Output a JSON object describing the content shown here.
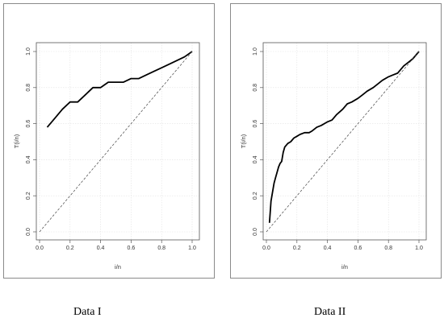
{
  "panels": [
    {
      "caption": "Data I",
      "chart_data": {
        "type": "line",
        "xlabel": "i/n",
        "ylabel": "T(i/n)",
        "xlim": [
          0,
          1
        ],
        "ylim": [
          0,
          1
        ],
        "xticks": [
          "0.0",
          "0.2",
          "0.4",
          "0.6",
          "0.8",
          "1.0"
        ],
        "yticks": [
          "0.0",
          "0.2",
          "0.4",
          "0.6",
          "0.8",
          "1.0"
        ],
        "grid": true,
        "series": [
          {
            "style": "solid",
            "x": [
              0.05,
              0.1,
              0.15,
              0.2,
              0.25,
              0.3,
              0.35,
              0.4,
              0.45,
              0.5,
              0.55,
              0.6,
              0.65,
              0.7,
              0.75,
              0.8,
              0.85,
              0.9,
              0.95,
              1.0
            ],
            "y": [
              0.58,
              0.63,
              0.68,
              0.72,
              0.72,
              0.76,
              0.8,
              0.8,
              0.83,
              0.83,
              0.83,
              0.85,
              0.85,
              0.87,
              0.89,
              0.91,
              0.93,
              0.95,
              0.97,
              1.0
            ]
          },
          {
            "style": "dashed",
            "x": [
              0,
              1
            ],
            "y": [
              0,
              1
            ]
          }
        ]
      }
    },
    {
      "caption": "Data II",
      "chart_data": {
        "type": "line",
        "xlabel": "i/n",
        "ylabel": "T(i/n)",
        "xlim": [
          0,
          1
        ],
        "ylim": [
          0,
          1
        ],
        "xticks": [
          "0.0",
          "0.2",
          "0.4",
          "0.6",
          "0.8",
          "1.0"
        ],
        "yticks": [
          "0.0",
          "0.2",
          "0.4",
          "0.6",
          "0.8",
          "1.0"
        ],
        "grid": true,
        "series": [
          {
            "style": "solid",
            "x": [
              0.02,
              0.03,
              0.04,
              0.05,
              0.06,
              0.07,
              0.08,
              0.09,
              0.1,
              0.11,
              0.12,
              0.14,
              0.16,
              0.18,
              0.2,
              0.22,
              0.25,
              0.28,
              0.3,
              0.33,
              0.36,
              0.4,
              0.43,
              0.46,
              0.5,
              0.53,
              0.56,
              0.6,
              0.63,
              0.66,
              0.7,
              0.73,
              0.76,
              0.8,
              0.83,
              0.86,
              0.9,
              0.93,
              0.96,
              1.0
            ],
            "y": [
              0.05,
              0.17,
              0.22,
              0.27,
              0.3,
              0.33,
              0.36,
              0.38,
              0.39,
              0.44,
              0.47,
              0.49,
              0.5,
              0.52,
              0.53,
              0.54,
              0.55,
              0.55,
              0.56,
              0.58,
              0.59,
              0.61,
              0.62,
              0.65,
              0.68,
              0.71,
              0.72,
              0.74,
              0.76,
              0.78,
              0.8,
              0.82,
              0.84,
              0.86,
              0.87,
              0.88,
              0.92,
              0.94,
              0.96,
              1.0
            ]
          },
          {
            "style": "dashed",
            "x": [
              0,
              1
            ],
            "y": [
              0,
              1
            ]
          }
        ]
      }
    }
  ]
}
